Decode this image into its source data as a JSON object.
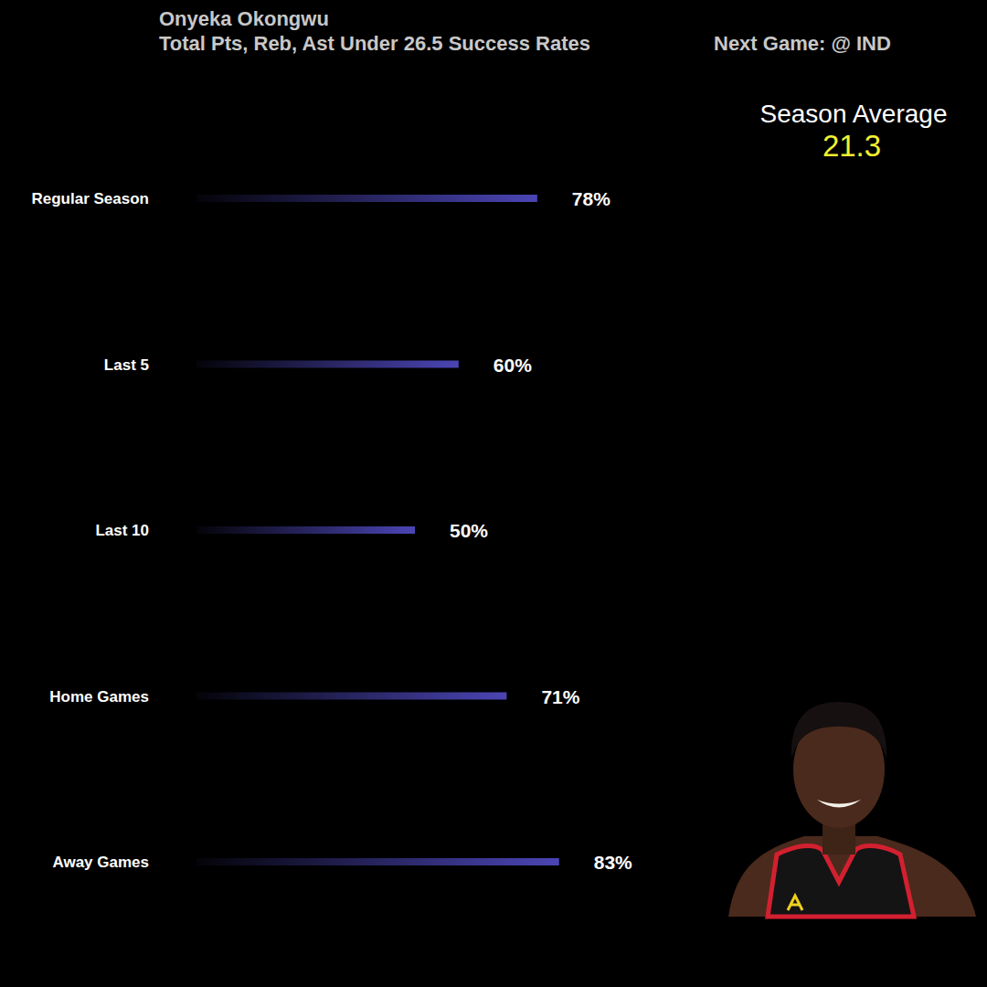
{
  "chart_data": {
    "type": "bar",
    "title": "Onyeka Okongwu",
    "subtitle": "Total Pts, Reb, Ast Under 26.5 Success Rates",
    "next_game": "Next Game: @ IND",
    "season_average_label": "Season Average",
    "season_average": 21.3,
    "categories": [
      "Regular Season",
      "Last 5",
      "Last 10",
      "Home Games",
      "Away Games"
    ],
    "values": [
      78,
      60,
      50,
      71,
      83
    ],
    "value_labels": [
      "78%",
      "60%",
      "50%",
      "71%",
      "83%"
    ],
    "orientation": "horizontal",
    "data_labels": true,
    "tick_labels": "y",
    "color": "#4b45b5",
    "xlim": [
      0,
      100
    ]
  }
}
